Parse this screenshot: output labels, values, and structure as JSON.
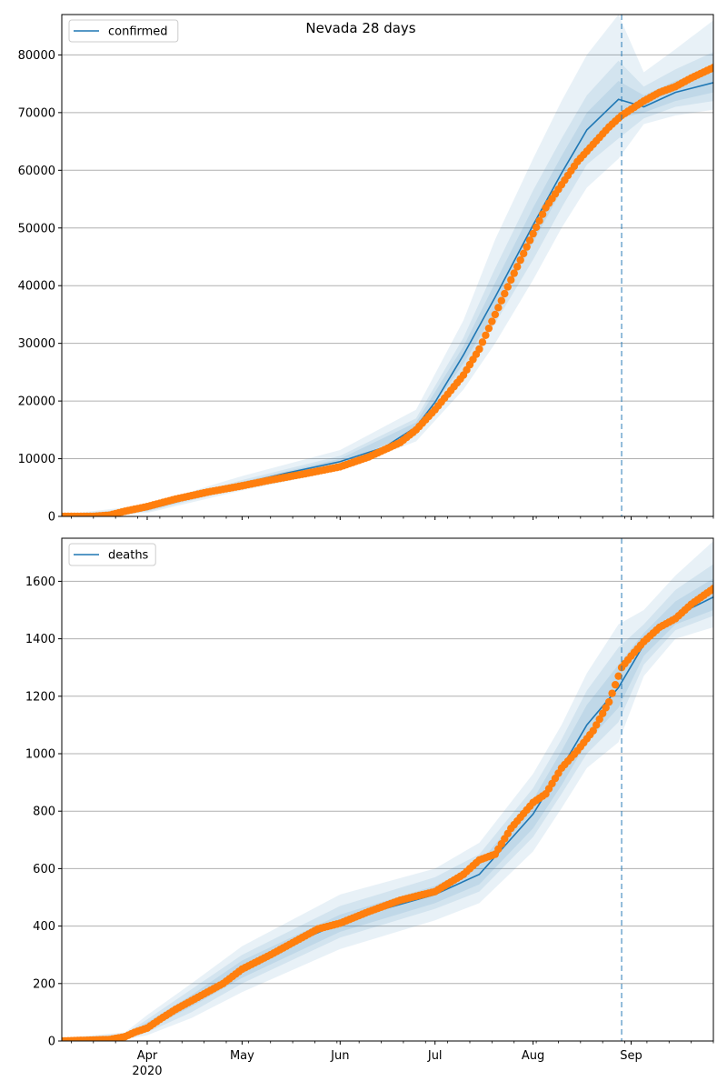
{
  "chart_data": [
    {
      "type": "line",
      "title": "Nevada 28 days",
      "legend": {
        "entries": [
          "confirmed"
        ],
        "placement": "top-left"
      },
      "series_name": "confirmed",
      "ylim": [
        0,
        87000
      ],
      "yticks": [
        0,
        10000,
        20000,
        30000,
        40000,
        50000,
        60000,
        70000,
        80000
      ],
      "grid": "horizontal",
      "forecast_start": "2020-08-29",
      "x_range": [
        "2020-03-05",
        "2020-09-27"
      ],
      "model_fit": {
        "x": [
          "2020-03-05",
          "2020-03-16",
          "2020-03-25",
          "2020-04-01",
          "2020-04-15",
          "2020-05-01",
          "2020-05-15",
          "2020-06-01",
          "2020-06-15",
          "2020-06-25",
          "2020-07-01",
          "2020-07-10",
          "2020-07-20",
          "2020-08-01",
          "2020-08-10",
          "2020-08-18",
          "2020-08-28",
          "2020-09-05",
          "2020-09-15",
          "2020-09-27"
        ],
        "y": [
          0,
          100,
          400,
          1200,
          3200,
          5700,
          7500,
          9500,
          12000,
          15500,
          19800,
          28000,
          38000,
          50500,
          59500,
          67000,
          72300,
          71000,
          73500,
          75200
        ]
      },
      "bands": [
        {
          "x": [
            "2020-03-05",
            "2020-04-01",
            "2020-05-01",
            "2020-06-01",
            "2020-06-25",
            "2020-07-10",
            "2020-07-20",
            "2020-08-01",
            "2020-08-10",
            "2020-08-18",
            "2020-08-28",
            "2020-09-05",
            "2020-09-15",
            "2020-09-27"
          ],
          "upper": [
            300,
            2000,
            7000,
            11500,
            18500,
            34000,
            48000,
            62000,
            72000,
            80000,
            87000,
            77000,
            81000,
            86000
          ],
          "lower": [
            0,
            600,
            4500,
            8000,
            13000,
            22000,
            30000,
            41000,
            50000,
            57000,
            62000,
            68000,
            69500,
            70500
          ]
        },
        {
          "x": [
            "2020-03-05",
            "2020-04-01",
            "2020-05-01",
            "2020-06-01",
            "2020-06-25",
            "2020-07-10",
            "2020-07-20",
            "2020-08-01",
            "2020-08-10",
            "2020-08-18",
            "2020-08-28",
            "2020-09-05",
            "2020-09-15",
            "2020-09-27"
          ],
          "upper": [
            200,
            1600,
            6300,
            10500,
            17000,
            31000,
            43000,
            56500,
            65500,
            73000,
            79000,
            74500,
            77500,
            80500
          ],
          "lower": [
            0,
            800,
            5000,
            8500,
            14000,
            25000,
            33500,
            44500,
            53500,
            61000,
            65500,
            69000,
            71000,
            72000
          ]
        },
        {
          "x": [
            "2020-03-05",
            "2020-04-01",
            "2020-05-01",
            "2020-06-01",
            "2020-06-25",
            "2020-07-10",
            "2020-07-20",
            "2020-08-01",
            "2020-08-10",
            "2020-08-18",
            "2020-08-28",
            "2020-09-05",
            "2020-09-15",
            "2020-09-27"
          ],
          "upper": [
            150,
            1400,
            6000,
            10000,
            16300,
            29500,
            40500,
            53500,
            62500,
            70000,
            75500,
            73000,
            75500,
            77500
          ],
          "lower": [
            0,
            1000,
            5400,
            9000,
            14800,
            26500,
            35500,
            47500,
            56500,
            64000,
            69000,
            70000,
            72000,
            73500
          ]
        }
      ],
      "observed": {
        "name": "observed",
        "x": [
          "2020-03-05",
          "2020-03-15",
          "2020-03-20",
          "2020-03-25",
          "2020-04-01",
          "2020-04-10",
          "2020-04-20",
          "2020-05-01",
          "2020-05-10",
          "2020-05-20",
          "2020-06-01",
          "2020-06-10",
          "2020-06-20",
          "2020-06-25",
          "2020-07-01",
          "2020-07-10",
          "2020-07-15",
          "2020-07-20",
          "2020-07-25",
          "2020-08-01",
          "2020-08-05",
          "2020-08-10",
          "2020-08-15",
          "2020-08-20",
          "2020-08-25",
          "2020-08-29",
          "2020-09-05",
          "2020-09-10",
          "2020-09-15",
          "2020-09-20",
          "2020-09-27"
        ],
        "y": [
          0,
          0,
          200,
          900,
          1700,
          3000,
          4200,
          5300,
          6300,
          7300,
          8600,
          10300,
          12800,
          15000,
          18500,
          24500,
          29000,
          35000,
          41000,
          49000,
          53500,
          57500,
          61500,
          64500,
          67500,
          69500,
          72000,
          73500,
          74500,
          76000,
          77800
        ]
      }
    },
    {
      "type": "line",
      "legend": {
        "entries": [
          "deaths"
        ],
        "placement": "top-left"
      },
      "series_name": "deaths",
      "ylim": [
        0,
        1750
      ],
      "yticks": [
        0,
        200,
        400,
        600,
        800,
        1000,
        1200,
        1400,
        1600
      ],
      "grid": "horizontal",
      "forecast_start": "2020-08-29",
      "x_range": [
        "2020-03-05",
        "2020-09-27"
      ],
      "xticks": [
        {
          "date": "2020-04-01",
          "label": "Apr",
          "sublabel": "2020"
        },
        {
          "date": "2020-05-01",
          "label": "May",
          "sublabel": ""
        },
        {
          "date": "2020-06-01",
          "label": "Jun",
          "sublabel": ""
        },
        {
          "date": "2020-07-01",
          "label": "Jul",
          "sublabel": ""
        },
        {
          "date": "2020-08-01",
          "label": "Aug",
          "sublabel": ""
        },
        {
          "date": "2020-09-01",
          "label": "Sep",
          "sublabel": ""
        }
      ],
      "model_fit": {
        "x": [
          "2020-03-05",
          "2020-03-20",
          "2020-03-25",
          "2020-04-01",
          "2020-04-15",
          "2020-05-01",
          "2020-05-15",
          "2020-06-01",
          "2020-06-15",
          "2020-07-01",
          "2020-07-15",
          "2020-08-01",
          "2020-08-10",
          "2020-08-18",
          "2020-08-28",
          "2020-09-05",
          "2020-09-15",
          "2020-09-27"
        ],
        "y": [
          0,
          5,
          15,
          50,
          140,
          250,
          330,
          410,
          460,
          510,
          580,
          790,
          950,
          1100,
          1230,
          1380,
          1480,
          1545
        ]
      },
      "bands": [
        {
          "x": [
            "2020-03-05",
            "2020-03-25",
            "2020-04-01",
            "2020-04-15",
            "2020-05-01",
            "2020-06-01",
            "2020-07-01",
            "2020-07-15",
            "2020-08-01",
            "2020-08-10",
            "2020-08-18",
            "2020-08-28",
            "2020-09-05",
            "2020-09-15",
            "2020-09-27"
          ],
          "upper": [
            10,
            30,
            90,
            200,
            330,
            510,
            600,
            690,
            930,
            1100,
            1280,
            1450,
            1500,
            1620,
            1740
          ],
          "lower": [
            0,
            5,
            20,
            80,
            170,
            320,
            420,
            480,
            660,
            810,
            950,
            1040,
            1270,
            1400,
            1440
          ]
        },
        {
          "x": [
            "2020-03-05",
            "2020-03-25",
            "2020-04-01",
            "2020-04-15",
            "2020-05-01",
            "2020-06-01",
            "2020-07-01",
            "2020-07-15",
            "2020-08-01",
            "2020-08-10",
            "2020-08-18",
            "2020-08-28",
            "2020-09-05",
            "2020-09-15",
            "2020-09-27"
          ],
          "upper": [
            8,
            25,
            75,
            180,
            300,
            470,
            570,
            650,
            880,
            1050,
            1220,
            1370,
            1450,
            1570,
            1660
          ],
          "lower": [
            0,
            8,
            30,
            100,
            200,
            360,
            460,
            520,
            710,
            860,
            1000,
            1110,
            1310,
            1430,
            1480
          ]
        },
        {
          "x": [
            "2020-03-05",
            "2020-03-25",
            "2020-04-01",
            "2020-04-15",
            "2020-05-01",
            "2020-06-01",
            "2020-07-01",
            "2020-07-15",
            "2020-08-01",
            "2020-08-10",
            "2020-08-18",
            "2020-08-28",
            "2020-09-05",
            "2020-09-15",
            "2020-09-27"
          ],
          "upper": [
            6,
            20,
            65,
            160,
            280,
            440,
            540,
            620,
            840,
            1010,
            1170,
            1310,
            1420,
            1530,
            1610
          ],
          "lower": [
            0,
            10,
            40,
            120,
            220,
            380,
            480,
            545,
            740,
            890,
            1040,
            1160,
            1340,
            1450,
            1500
          ]
        }
      ],
      "observed": {
        "name": "observed",
        "x": [
          "2020-03-05",
          "2020-03-20",
          "2020-03-25",
          "2020-03-28",
          "2020-04-01",
          "2020-04-05",
          "2020-04-10",
          "2020-04-15",
          "2020-04-20",
          "2020-04-25",
          "2020-05-01",
          "2020-05-10",
          "2020-05-15",
          "2020-05-20",
          "2020-05-25",
          "2020-06-01",
          "2020-06-10",
          "2020-06-20",
          "2020-07-01",
          "2020-07-10",
          "2020-07-15",
          "2020-07-20",
          "2020-07-25",
          "2020-08-01",
          "2020-08-05",
          "2020-08-10",
          "2020-08-15",
          "2020-08-20",
          "2020-08-25",
          "2020-08-29",
          "2020-09-01",
          "2020-09-05",
          "2020-09-10",
          "2020-09-15",
          "2020-09-20",
          "2020-09-27"
        ],
        "y": [
          0,
          5,
          15,
          30,
          45,
          75,
          110,
          140,
          170,
          200,
          250,
          300,
          330,
          360,
          390,
          410,
          450,
          490,
          520,
          580,
          630,
          650,
          740,
          830,
          860,
          950,
          1010,
          1080,
          1180,
          1300,
          1340,
          1390,
          1440,
          1470,
          1520,
          1575
        ]
      }
    }
  ]
}
